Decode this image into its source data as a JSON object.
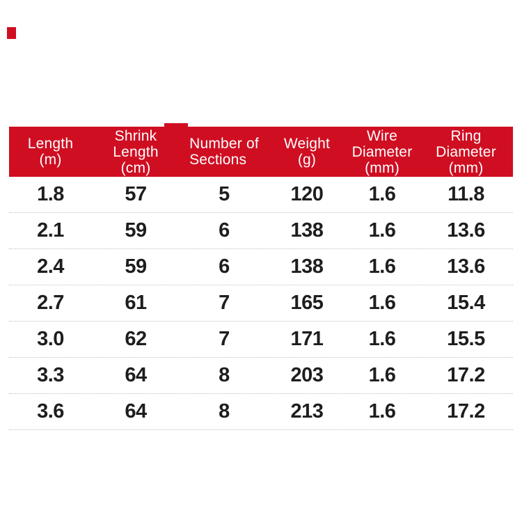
{
  "colors": {
    "header_red": "#cf0e22",
    "text_dark": "#1e1e1e",
    "separator_gray": "#bfbfbf",
    "background": "#ffffff"
  },
  "chart_data": {
    "type": "table",
    "title": "",
    "columns": [
      {
        "label": "Length (m)",
        "lines": [
          "Length",
          "(m)"
        ]
      },
      {
        "label": "Shrink Length (cm)",
        "lines": [
          "Shrink",
          "Length",
          "(cm)"
        ]
      },
      {
        "label": "Number of Sections",
        "lines": [
          "Number of",
          "Sections"
        ]
      },
      {
        "label": "Weight (g)",
        "lines": [
          "Weight",
          "(g)"
        ]
      },
      {
        "label": "Wire Diameter (mm)",
        "lines": [
          "Wire",
          "Diameter",
          "(mm)"
        ]
      },
      {
        "label": "Ring Diameter (mm)",
        "lines": [
          "Ring",
          "Diameter",
          "(mm)"
        ]
      }
    ],
    "rows": [
      [
        "1.8",
        "57",
        "5",
        "120",
        "1.6",
        "11.8"
      ],
      [
        "2.1",
        "59",
        "6",
        "138",
        "1.6",
        "13.6"
      ],
      [
        "2.4",
        "59",
        "6",
        "138",
        "1.6",
        "13.6"
      ],
      [
        "2.7",
        "61",
        "7",
        "165",
        "1.6",
        "15.4"
      ],
      [
        "3.0",
        "62",
        "7",
        "171",
        "1.6",
        "15.5"
      ],
      [
        "3.3",
        "64",
        "8",
        "203",
        "1.6",
        "17.2"
      ],
      [
        "3.6",
        "64",
        "8",
        "213",
        "1.6",
        "17.2"
      ]
    ]
  }
}
